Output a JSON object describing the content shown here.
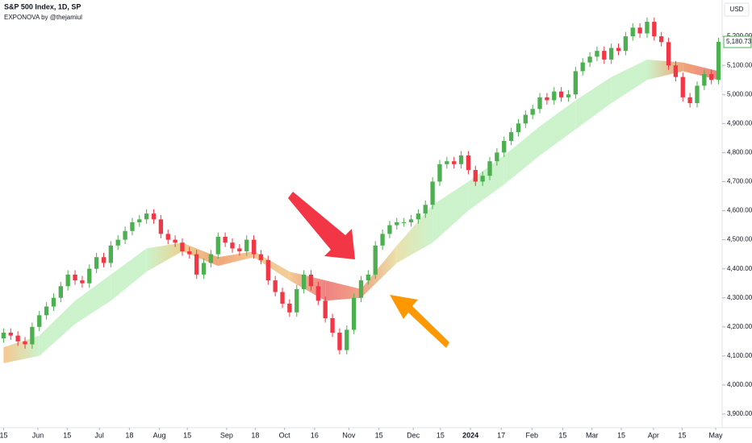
{
  "chart_data": {
    "type": "candlestick",
    "title": "S&P 500 Index, 1D, SP",
    "subtitle": "EXPONOVA by @thejamiul",
    "currency": "USD",
    "up_color": "#4caf50",
    "down_color": "#f23645",
    "x": [
      0,
      1,
      2,
      3,
      4,
      5,
      6,
      7,
      8,
      9,
      10,
      11,
      12,
      13,
      14,
      15,
      16,
      17,
      18,
      19,
      20,
      21,
      22,
      23,
      24,
      25,
      26,
      27,
      28,
      29,
      30,
      31,
      32,
      33,
      34,
      35,
      36,
      37,
      38,
      39,
      40,
      41,
      42,
      43,
      44,
      45,
      46,
      47,
      48,
      49,
      50,
      51,
      52,
      53,
      54,
      55,
      56,
      57,
      58,
      59,
      60,
      61,
      62,
      63,
      64,
      65,
      66,
      67,
      68,
      69,
      70,
      71,
      72,
      73,
      74,
      75,
      76,
      77,
      78,
      79,
      80,
      81,
      82,
      83,
      84,
      85,
      86,
      87,
      88,
      89,
      90,
      91,
      92,
      93,
      94,
      95,
      96,
      97,
      98,
      99,
      100
    ],
    "open": [
      4160,
      4180,
      4170,
      4150,
      4140,
      4200,
      4240,
      4270,
      4300,
      4340,
      4380,
      4360,
      4350,
      4400,
      4440,
      4420,
      4480,
      4500,
      4530,
      4560,
      4570,
      4590,
      4570,
      4520,
      4500,
      4490,
      4460,
      4450,
      4380,
      4420,
      4450,
      4510,
      4490,
      4470,
      4460,
      4500,
      4450,
      4430,
      4360,
      4320,
      4280,
      4250,
      4330,
      4380,
      4340,
      4290,
      4230,
      4180,
      4120,
      4190,
      4300,
      4360,
      4380,
      4480,
      4520,
      4550,
      4560,
      4560,
      4570,
      4590,
      4620,
      4700,
      4760,
      4770,
      4760,
      4790,
      4740,
      4700,
      4720,
      4770,
      4800,
      4840,
      4870,
      4900,
      4930,
      4950,
      4990,
      4980,
      5010,
      4990,
      5000,
      5080,
      5110,
      5130,
      5150,
      5120,
      5160,
      5150,
      5200,
      5230,
      5210,
      5250,
      5200,
      5180,
      5100,
      5060,
      4990,
      4970,
      5030,
      5070,
      5050
    ],
    "high": [
      4195,
      4195,
      4185,
      4165,
      4215,
      4255,
      4285,
      4315,
      4355,
      4395,
      4395,
      4375,
      4415,
      4455,
      4455,
      4495,
      4515,
      4545,
      4575,
      4585,
      4605,
      4605,
      4585,
      4535,
      4515,
      4505,
      4475,
      4465,
      4435,
      4465,
      4525,
      4525,
      4505,
      4485,
      4515,
      4515,
      4465,
      4445,
      4375,
      4335,
      4295,
      4345,
      4395,
      4395,
      4355,
      4305,
      4245,
      4195,
      4205,
      4315,
      4375,
      4395,
      4495,
      4535,
      4565,
      4575,
      4575,
      4585,
      4605,
      4635,
      4715,
      4775,
      4785,
      4785,
      4805,
      4805,
      4755,
      4735,
      4785,
      4815,
      4855,
      4885,
      4915,
      4945,
      4965,
      5005,
      5005,
      5025,
      5025,
      5015,
      5095,
      5125,
      5145,
      5165,
      5165,
      5175,
      5175,
      5215,
      5245,
      5245,
      5265,
      5265,
      5215,
      5195,
      5115,
      5075,
      5005,
      5045,
      5085,
      5085,
      5195
    ],
    "low": [
      4145,
      4155,
      4135,
      4125,
      4125,
      4185,
      4225,
      4255,
      4285,
      4325,
      4345,
      4335,
      4335,
      4385,
      4405,
      4405,
      4465,
      4485,
      4515,
      4545,
      4555,
      4555,
      4505,
      4485,
      4475,
      4445,
      4435,
      4365,
      4365,
      4405,
      4435,
      4475,
      4455,
      4445,
      4445,
      4435,
      4415,
      4345,
      4305,
      4265,
      4235,
      4235,
      4315,
      4325,
      4275,
      4215,
      4165,
      4105,
      4105,
      4175,
      4285,
      4345,
      4365,
      4465,
      4505,
      4535,
      4545,
      4545,
      4555,
      4575,
      4605,
      4685,
      4745,
      4745,
      4745,
      4725,
      4685,
      4685,
      4705,
      4755,
      4785,
      4825,
      4855,
      4885,
      4915,
      4935,
      4965,
      4965,
      4975,
      4975,
      4985,
      5065,
      5095,
      5115,
      5105,
      5105,
      5135,
      5135,
      5185,
      5195,
      5195,
      5185,
      5165,
      5085,
      5045,
      4975,
      4955,
      4955,
      5015,
      5035,
      5035
    ],
    "close": [
      4180,
      4170,
      4150,
      4140,
      4200,
      4240,
      4270,
      4300,
      4340,
      4380,
      4360,
      4350,
      4400,
      4440,
      4420,
      4480,
      4500,
      4530,
      4560,
      4570,
      4590,
      4570,
      4520,
      4500,
      4490,
      4460,
      4450,
      4380,
      4420,
      4450,
      4510,
      4490,
      4470,
      4460,
      4500,
      4450,
      4430,
      4360,
      4320,
      4280,
      4250,
      4330,
      4380,
      4340,
      4290,
      4230,
      4180,
      4120,
      4190,
      4300,
      4360,
      4380,
      4480,
      4520,
      4550,
      4560,
      4560,
      4570,
      4590,
      4620,
      4700,
      4760,
      4770,
      4760,
      4790,
      4740,
      4700,
      4720,
      4770,
      4800,
      4840,
      4870,
      4900,
      4930,
      4950,
      4990,
      4980,
      5010,
      4990,
      5000,
      5080,
      5110,
      5130,
      5150,
      5120,
      5160,
      5150,
      5200,
      5230,
      5210,
      5250,
      5200,
      5180,
      5100,
      5060,
      4990,
      4970,
      5030,
      5070,
      5050,
      5180.73
    ],
    "band": {
      "x": [
        0,
        5,
        10,
        15,
        20,
        25,
        30,
        35,
        40,
        45,
        50,
        55,
        60,
        65,
        70,
        75,
        80,
        85,
        90,
        95,
        100
      ],
      "upper": [
        4130,
        4170,
        4290,
        4380,
        4470,
        4490,
        4440,
        4460,
        4390,
        4360,
        4330,
        4480,
        4620,
        4700,
        4790,
        4890,
        4980,
        5060,
        5120,
        5110,
        5080
      ],
      "lower": [
        4075,
        4100,
        4210,
        4290,
        4390,
        4460,
        4410,
        4440,
        4360,
        4290,
        4300,
        4420,
        4490,
        4600,
        4690,
        4790,
        4880,
        4970,
        5050,
        5080,
        5050
      ],
      "colors": [
        "#f5c48a",
        "#c9f2c9",
        "#c9f2c9",
        "#c9f2c9",
        "#c9f2c9",
        "#e8d08a",
        "#f0a070",
        "#f3c590",
        "#f2c98f",
        "#ee7b7b",
        "#f0a080",
        "#e8e0a8",
        "#c9f2c9",
        "#c9f2c9",
        "#c9f2c9",
        "#c9f2c9",
        "#c9f2c9",
        "#c9f2c9",
        "#c9f2c9",
        "#f0a070",
        "#ee7b7b"
      ]
    },
    "last_price": {
      "value": 5180.73,
      "label": "5,180.73"
    },
    "xlim": [
      -0.5,
      100.5
    ],
    "xticks": [
      {
        "value": 0,
        "label": "15"
      },
      {
        "value": 4.8,
        "label": "Jun"
      },
      {
        "value": 8.9,
        "label": "15"
      },
      {
        "value": 13.4,
        "label": "Jul"
      },
      {
        "value": 17.6,
        "label": "18"
      },
      {
        "value": 21.8,
        "label": "Aug"
      },
      {
        "value": 25.7,
        "label": "15"
      },
      {
        "value": 31.2,
        "label": "Sep"
      },
      {
        "value": 35.2,
        "label": "18"
      },
      {
        "value": 39.3,
        "label": "Oct"
      },
      {
        "value": 43.5,
        "label": "16"
      },
      {
        "value": 48.3,
        "label": "Nov"
      },
      {
        "value": 52.5,
        "label": "15"
      },
      {
        "value": 57.3,
        "label": "Dec"
      },
      {
        "value": 61.1,
        "label": "15"
      },
      {
        "value": 65.3,
        "label": "2024"
      },
      {
        "value": 69.6,
        "label": "17"
      },
      {
        "value": 73.9,
        "label": "Feb"
      },
      {
        "value": 78.2,
        "label": "15"
      },
      {
        "value": 82.3,
        "label": "Mar"
      },
      {
        "value": 86.4,
        "label": "15"
      },
      {
        "value": 90.9,
        "label": "Apr"
      },
      {
        "value": 94.9,
        "label": "15"
      },
      {
        "value": 99.6,
        "label": "May"
      }
    ],
    "ylim": [
      3853,
      5325
    ],
    "yticks": [
      {
        "value": 3900,
        "label": "3,900.00"
      },
      {
        "value": 4000,
        "label": "4,000.00"
      },
      {
        "value": 4100,
        "label": "4,100.00"
      },
      {
        "value": 4200,
        "label": "4,200.00"
      },
      {
        "value": 4300,
        "label": "4,300.00"
      },
      {
        "value": 4400,
        "label": "4,400.00"
      },
      {
        "value": 4500,
        "label": "4,500.00"
      },
      {
        "value": 4600,
        "label": "4,600.00"
      },
      {
        "value": 4700,
        "label": "4,700.00"
      },
      {
        "value": 4800,
        "label": "4,800.00"
      },
      {
        "value": 4900,
        "label": "4,900.00"
      },
      {
        "value": 5000,
        "label": "5,000.00"
      },
      {
        "value": 5100,
        "label": "5,100.00"
      },
      {
        "value": 5200,
        "label": "5,200.00"
      }
    ]
  }
}
